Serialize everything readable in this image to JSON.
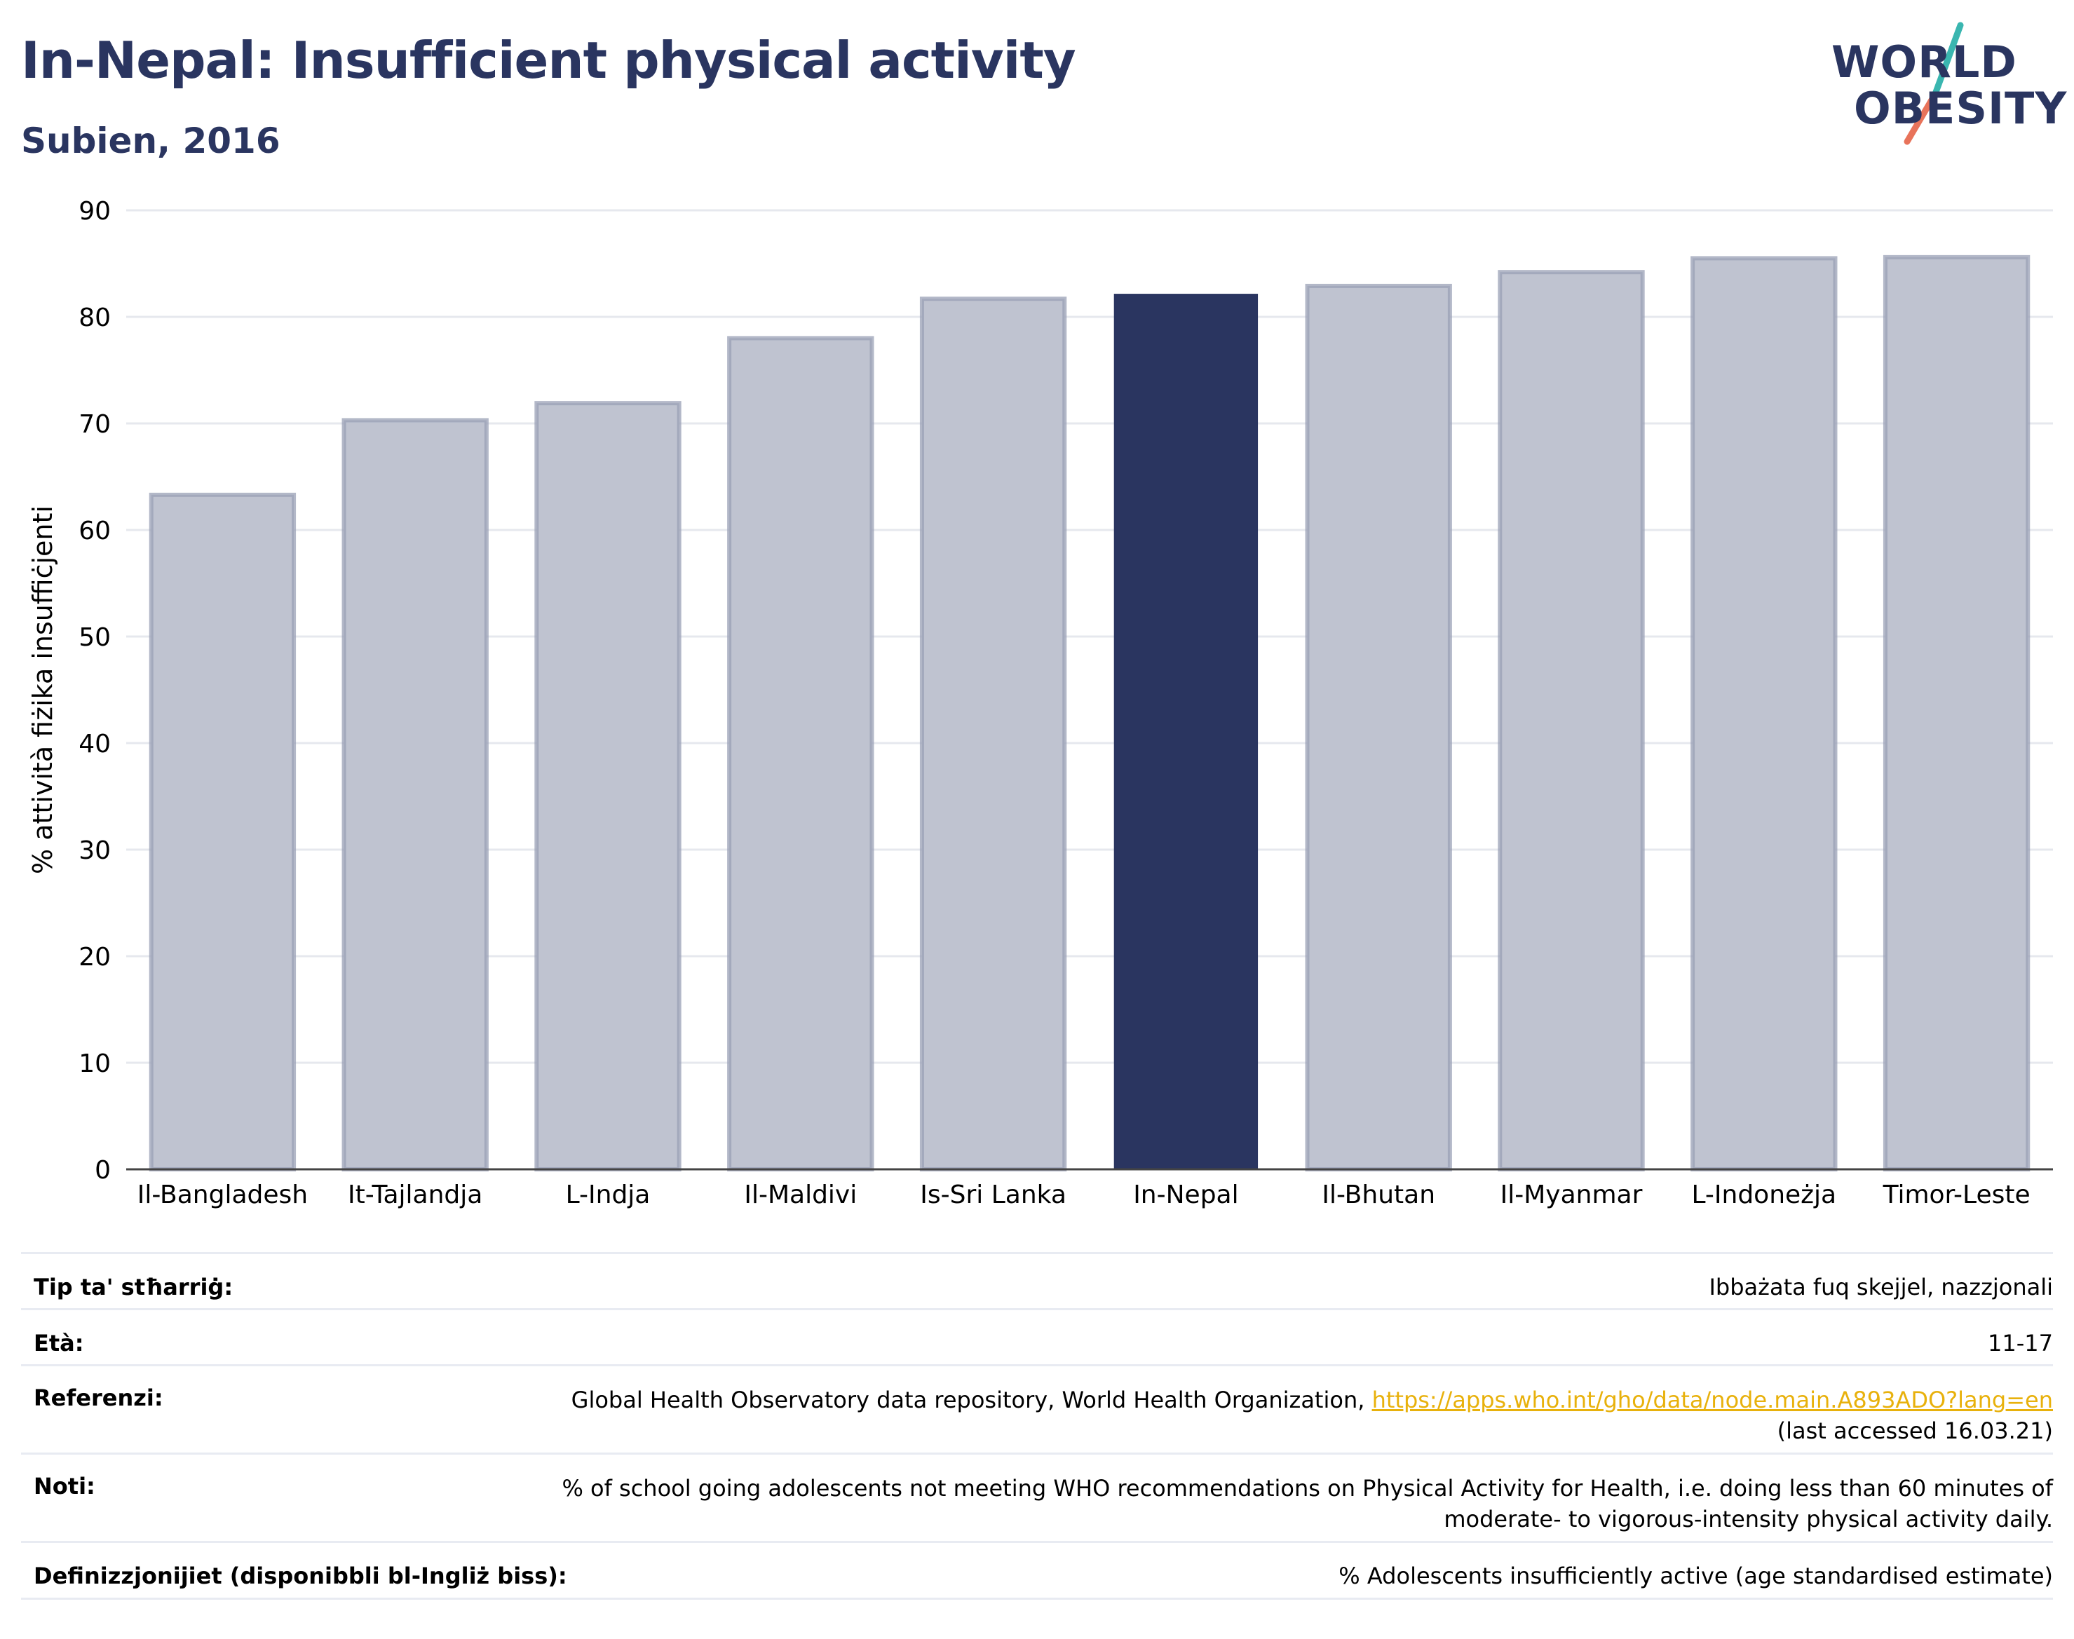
{
  "header": {
    "title": "In-Nepal: Insufficient physical activity",
    "subtitle": "Subien, 2016"
  },
  "logo": {
    "line1": "WORLD",
    "line2": "OBESITY"
  },
  "chart_data": {
    "type": "bar",
    "ylabel": "% attività fiżika insuffiċjenti",
    "ylim": [
      0,
      90
    ],
    "yticks": [
      0,
      10,
      20,
      30,
      40,
      50,
      60,
      70,
      80,
      90
    ],
    "grid": true,
    "categories": [
      "Il-Bangladesh",
      "It-Tajlandja",
      "L-Indja",
      "Il-Maldivi",
      "Is-Sri Lanka",
      "In-Nepal",
      "Il-Bhutan",
      "Il-Myanmar",
      "L-Indoneżja",
      "Timor-Leste"
    ],
    "values": [
      63.3,
      70.3,
      71.9,
      78.0,
      81.7,
      82.1,
      82.9,
      84.2,
      85.5,
      85.6
    ],
    "highlight": "In-Nepal",
    "colors": {
      "highlight": "#2a3560",
      "other": "#bfc3d0",
      "other_border": "#9aa0b6"
    }
  },
  "info": {
    "survey_type_label": "Tip ta' stħarriġ:",
    "survey_type_value": "Ibbażata fuq skejjel, nazzjonali",
    "age_label": "Età:",
    "age_value": "11-17",
    "references_label": "Referenzi:",
    "references_source": "Global Health Observatory data repository, World Health Organization,",
    "references_link": "https://apps.who.int/gho/data/node.main.A893ADO?lang=en",
    "references_accessed": "(last accessed 16.03.21)",
    "notes_label": "Noti:",
    "notes_line1": "% of school going adolescents not meeting WHO recommendations on Physical Activity for Health, i.e. doing less than 60 minutes of",
    "notes_line2": "moderate- to vigorous-intensity physical activity daily.",
    "definitions_label": "Definizzjonijiet (disponibbli bl-Ingliż biss):",
    "definitions_value": "% Adolescents insufficiently active (age standardised estimate)"
  }
}
